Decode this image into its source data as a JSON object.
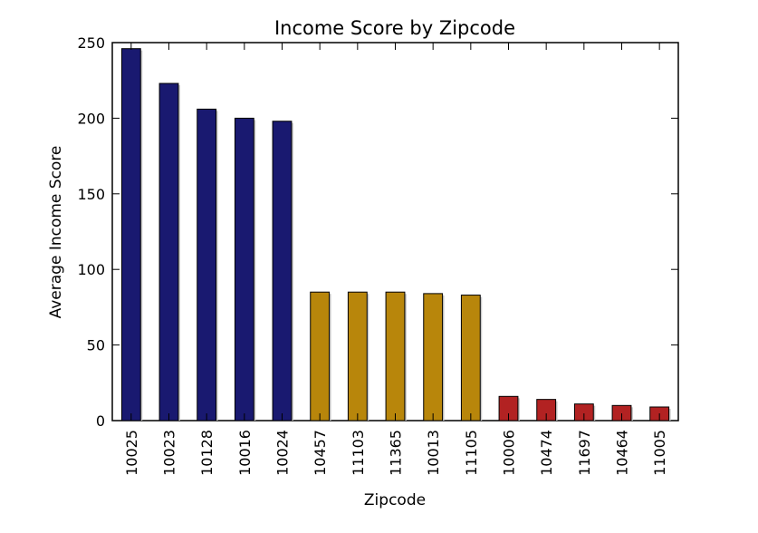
{
  "chart_data": {
    "type": "bar",
    "title": "Income Score by Zipcode",
    "xlabel": "Zipcode",
    "ylabel": "Average Income Score",
    "categories": [
      "10025",
      "10023",
      "10128",
      "10016",
      "10024",
      "10457",
      "11103",
      "11365",
      "10013",
      "11105",
      "10006",
      "10474",
      "11697",
      "10464",
      "11005"
    ],
    "values": [
      246,
      223,
      206,
      200,
      198,
      85,
      85,
      85,
      84,
      83,
      16,
      14,
      11,
      10,
      9
    ],
    "bar_colors": [
      "#191970",
      "#191970",
      "#191970",
      "#191970",
      "#191970",
      "#b8860b",
      "#b8860b",
      "#b8860b",
      "#b8860b",
      "#b8860b",
      "#b22222",
      "#b22222",
      "#b22222",
      "#b22222",
      "#b22222"
    ],
    "ylim": [
      0,
      250
    ],
    "yticks": [
      0,
      50,
      100,
      150,
      200,
      250
    ],
    "grid": false,
    "legend": "none"
  }
}
